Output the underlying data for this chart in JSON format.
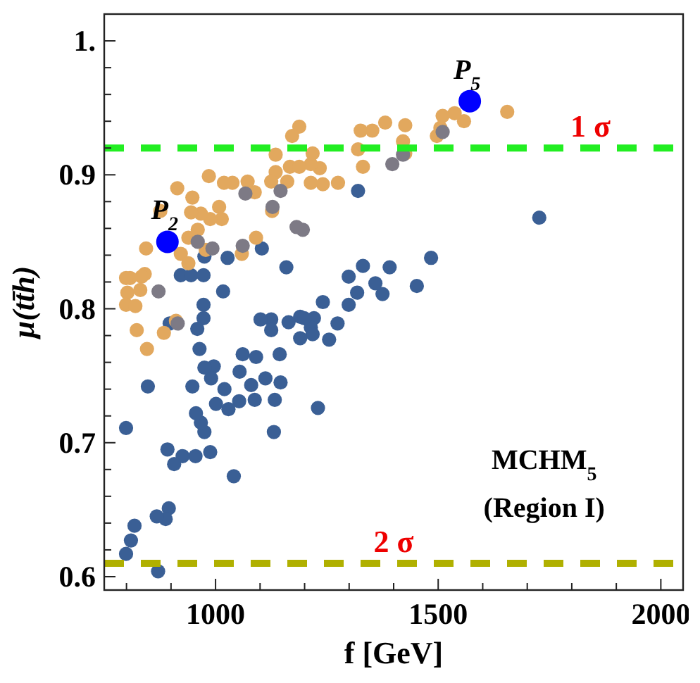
{
  "chart_data": {
    "type": "scatter",
    "xlabel": "f [GeV]",
    "ylabel": "μ(tt̄h)",
    "xlim": [
      750,
      2050
    ],
    "ylim": [
      0.59,
      1.02
    ],
    "xticks": [
      {
        "value": 800,
        "label": null
      },
      {
        "value": 900,
        "label": null
      },
      1000,
      {
        "value": 1100,
        "label": null
      },
      {
        "value": 1200,
        "label": null
      },
      {
        "value": 1300,
        "label": null
      },
      {
        "value": 1400,
        "label": null
      },
      1500,
      {
        "value": 1600,
        "label": null
      },
      {
        "value": 1700,
        "label": null
      },
      {
        "value": 1800,
        "label": null
      },
      {
        "value": 1900,
        "label": null
      },
      2000
    ],
    "yticks": [
      0.6,
      {
        "value": 0.62,
        "label": null
      },
      {
        "value": 0.64,
        "label": null
      },
      {
        "value": 0.66,
        "label": null
      },
      {
        "value": 0.68,
        "label": null
      },
      0.7,
      {
        "value": 0.72,
        "label": null
      },
      {
        "value": 0.74,
        "label": null
      },
      {
        "value": 0.76,
        "label": null
      },
      {
        "value": 0.78,
        "label": null
      },
      0.8,
      {
        "value": 0.82,
        "label": null
      },
      {
        "value": 0.84,
        "label": null
      },
      {
        "value": 0.86,
        "label": null
      },
      {
        "value": 0.88,
        "label": null
      },
      0.9,
      {
        "value": 0.92,
        "label": null
      },
      {
        "value": 0.94,
        "label": null
      },
      {
        "value": 0.96,
        "label": null
      },
      {
        "value": 0.98,
        "label": null
      },
      {
        "value": 1,
        "label": "1."
      }
    ],
    "grid": false,
    "marker": "circle",
    "series": [
      {
        "color": "#3a5f95",
        "x": [
          1727,
          1320,
          1484,
          1452,
          1391,
          1375,
          1359,
          1331,
          1299,
          1318,
          1299,
          1241,
          1274,
          1255,
          1230,
          1221,
          1214,
          1218,
          1190,
          1190,
          1199,
          1164,
          1159,
          1144,
          1146,
          1133,
          1131,
          1125,
          1125,
          1101,
          1104,
          1112,
          1091,
          1088,
          1080,
          1061,
          1054,
          1053,
          1027,
          1017,
          1029,
          1020,
          1041,
          1001,
          996,
          990,
          975,
          973,
          973,
          975,
          964,
          959,
          988,
          975,
          967,
          956,
          948,
          955,
          926,
          907,
          897,
          892,
          895,
          888,
          868,
          871,
          848,
          818,
          810,
          799,
          799,
          922,
          945,
          973
        ],
        "values": [
          0.868,
          0.888,
          0.838,
          0.817,
          0.831,
          0.811,
          0.819,
          0.832,
          0.824,
          0.812,
          0.803,
          0.805,
          0.789,
          0.777,
          0.726,
          0.793,
          0.786,
          0.781,
          0.778,
          0.794,
          0.793,
          0.79,
          0.831,
          0.766,
          0.745,
          0.732,
          0.708,
          0.792,
          0.784,
          0.792,
          0.845,
          0.748,
          0.764,
          0.732,
          0.743,
          0.766,
          0.753,
          0.731,
          0.838,
          0.813,
          0.725,
          0.74,
          0.675,
          0.729,
          0.757,
          0.748,
          0.756,
          0.793,
          0.803,
          0.839,
          0.77,
          0.785,
          0.693,
          0.708,
          0.715,
          0.722,
          0.742,
          0.69,
          0.69,
          0.684,
          0.789,
          0.695,
          0.651,
          0.643,
          0.645,
          0.604,
          0.742,
          0.638,
          0.627,
          0.617,
          0.711,
          0.825,
          0.825,
          0.825
        ]
      },
      {
        "color": "#7d7a85",
        "x": [
          1397,
          1421,
          1510,
          1196,
          1182,
          1146,
          1128,
          1061,
          1067,
          872,
          960,
          993,
          915
        ],
        "values": [
          0.908,
          0.915,
          0.932,
          0.859,
          0.861,
          0.888,
          0.876,
          0.847,
          0.886,
          0.813,
          0.85,
          0.845,
          0.789
        ]
      },
      {
        "color": "#e2a85e",
        "x": [
          1655,
          1558,
          1537,
          1510,
          1505,
          1497,
          1426,
          1421,
          1426,
          1381,
          1352,
          1326,
          1331,
          1320,
          1275,
          1241,
          1234,
          1214,
          1214,
          1188,
          1172,
          1167,
          1161,
          1135,
          1135,
          1125,
          1127,
          1188,
          1218,
          1088,
          1072,
          1038,
          1019,
          985,
          1008,
          1014,
          988,
          967,
          945,
          948,
          914,
          960,
          939,
          922,
          939,
          978,
          1059,
          1091,
          844,
          841,
          834,
          808,
          799,
          802,
          831,
          799,
          820,
          823,
          846,
          884,
          911,
          876
        ],
        "values": [
          0.947,
          0.94,
          0.946,
          0.944,
          0.935,
          0.929,
          0.937,
          0.925,
          0.916,
          0.939,
          0.933,
          0.933,
          0.906,
          0.919,
          0.894,
          0.893,
          0.905,
          0.908,
          0.894,
          0.936,
          0.929,
          0.906,
          0.895,
          0.915,
          0.902,
          0.895,
          0.873,
          0.906,
          0.916,
          0.887,
          0.895,
          0.894,
          0.894,
          0.899,
          0.876,
          0.867,
          0.867,
          0.871,
          0.872,
          0.883,
          0.89,
          0.859,
          0.853,
          0.841,
          0.834,
          0.844,
          0.841,
          0.853,
          0.845,
          0.826,
          0.824,
          0.823,
          0.823,
          0.812,
          0.814,
          0.803,
          0.802,
          0.784,
          0.77,
          0.782,
          0.791,
          0.873
        ]
      },
      {
        "type": "bubble",
        "color": "#0000ff",
        "sizes": [
          1,
          1
        ],
        "x": [
          892,
          1571
        ],
        "values": [
          0.85,
          0.955
        ]
      }
    ],
    "ref_lines": [
      {
        "axis": "y",
        "value": 0.92,
        "label": "1 σ",
        "color": "#22ee22",
        "line_style": "dashed"
      },
      {
        "axis": "y",
        "value": 0.61,
        "label": "2 σ",
        "color": "#b0b000",
        "line_style": "dashed"
      }
    ],
    "annotations": [
      {
        "text": "P$_{2}$",
        "x": 892,
        "y": 0.85
      },
      {
        "text": "P$_{5}$",
        "x": 1571,
        "y": 0.955
      },
      "MCHM$_{5}$",
      "(Region I)"
    ]
  }
}
